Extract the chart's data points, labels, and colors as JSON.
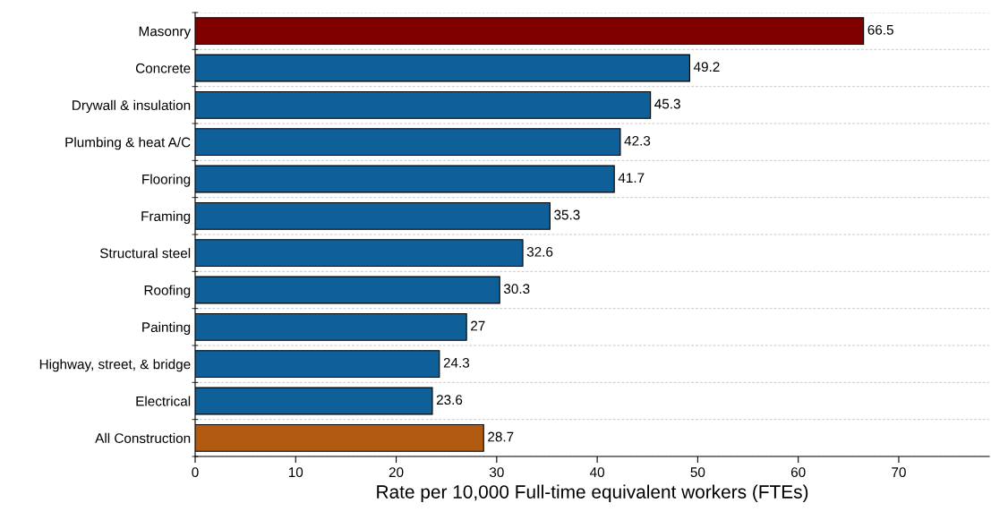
{
  "chart_data": {
    "type": "bar",
    "orientation": "horizontal",
    "categories": [
      "Masonry",
      "Concrete",
      "Drywall & insulation",
      "Plumbing & heat A/C",
      "Flooring",
      "Framing",
      "Structural steel",
      "Roofing",
      "Painting",
      "Highway, street, & bridge",
      "Electrical",
      "All Construction"
    ],
    "values": [
      66.5,
      49.2,
      45.3,
      42.3,
      41.7,
      35.3,
      32.6,
      30.3,
      27,
      24.3,
      23.6,
      28.7
    ],
    "colors": [
      "#800000",
      "#0f5f99",
      "#0f5f99",
      "#0f5f99",
      "#0f5f99",
      "#0f5f99",
      "#0f5f99",
      "#0f5f99",
      "#0f5f99",
      "#0f5f99",
      "#0f5f99",
      "#b35a12"
    ],
    "xlabel": "Rate per 10,000 Full-time equivalent workers (FTEs)",
    "xlim": [
      0,
      79
    ],
    "xticks": [
      0,
      10,
      20,
      30,
      40,
      50,
      60,
      70
    ],
    "grid": "y",
    "data_labels": true
  }
}
